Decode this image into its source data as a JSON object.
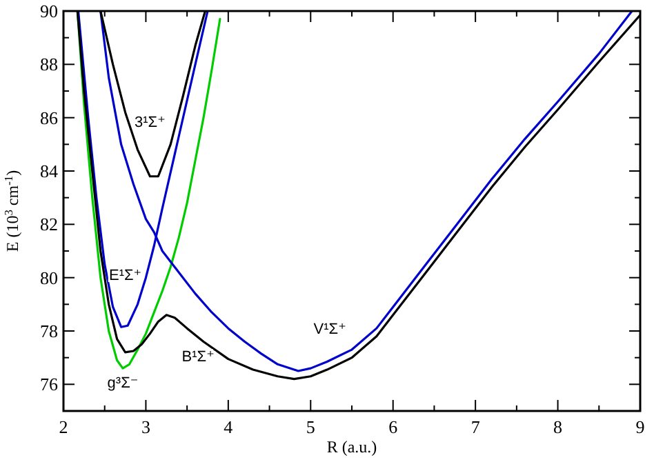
{
  "chart_data": {
    "type": "line",
    "xlabel": "R (a.u.)",
    "ylabel": "E (10$^{3}$ cm$^{-1}$)",
    "xlim": [
      2,
      9
    ],
    "ylim": [
      75,
      90
    ],
    "xticks": [
      2,
      {
        "value": 2.5,
        "label": null
      },
      3,
      {
        "value": 3.5,
        "label": null
      },
      4,
      {
        "value": 4.5,
        "label": null
      },
      5,
      {
        "value": 5.5,
        "label": null
      },
      6,
      {
        "value": 6.5,
        "label": null
      },
      7,
      {
        "value": 7.5,
        "label": null
      },
      8,
      {
        "value": 8.5,
        "label": null
      },
      9
    ],
    "yticks": [
      {
        "value": 75,
        "label": null
      },
      76,
      {
        "value": 77,
        "label": null
      },
      78,
      {
        "value": 79,
        "label": null
      },
      80,
      {
        "value": 81,
        "label": null
      },
      82,
      {
        "value": 83,
        "label": null
      },
      84,
      {
        "value": 85,
        "label": null
      },
      86,
      {
        "value": 87,
        "label": null
      },
      88,
      {
        "value": 89,
        "label": null
      },
      90
    ],
    "grid": false,
    "marker": "none",
    "line_style": "solid",
    "series": [
      {
        "name": "g³Σ⁻",
        "color": "#00cc00",
        "x": [
          2.17,
          2.25,
          2.35,
          2.45,
          2.55,
          2.65,
          2.72,
          2.8,
          2.9,
          3.0,
          3.1,
          3.2,
          3.3,
          3.4,
          3.5,
          3.6,
          3.7,
          3.8,
          3.9
        ],
        "values": [
          90,
          86.5,
          83,
          80,
          78,
          76.9,
          76.6,
          76.75,
          77.3,
          77.9,
          78.7,
          79.5,
          80.4,
          81.5,
          82.8,
          84.4,
          86.0,
          87.8,
          89.7
        ]
      },
      {
        "name": "E¹Σ⁺",
        "color": "#0000cc",
        "x": [
          2.18,
          2.3,
          2.4,
          2.5,
          2.6,
          2.7,
          2.78,
          2.9,
          3.0,
          3.1,
          3.2,
          3.4,
          3.6,
          3.75
        ],
        "values": [
          90,
          86,
          83,
          80.5,
          78.9,
          78.15,
          78.2,
          79,
          80,
          81.2,
          82.6,
          85.3,
          88,
          90
        ]
      },
      {
        "name": "V¹Σ⁺",
        "color": "#0000cc",
        "x": [
          2.45,
          2.55,
          2.7,
          2.85,
          3.0,
          3.1,
          3.2,
          3.4,
          3.6,
          3.8,
          4.0,
          4.2,
          4.4,
          4.6,
          4.85,
          5.0,
          5.2,
          5.5,
          5.8,
          6.0,
          6.4,
          6.8,
          7.2,
          7.6,
          8.0,
          8.5,
          8.9
        ],
        "values": [
          90,
          87.5,
          85,
          83.5,
          82.2,
          81.7,
          81,
          80.2,
          79.4,
          78.7,
          78.1,
          77.6,
          77.15,
          76.75,
          76.5,
          76.6,
          76.85,
          77.3,
          78.1,
          78.9,
          80.5,
          82.1,
          83.7,
          85.2,
          86.6,
          88.4,
          90
        ]
      },
      {
        "name": "B¹Σ⁺",
        "color": "#000000",
        "x": [
          2.17,
          2.25,
          2.35,
          2.45,
          2.55,
          2.65,
          2.75,
          2.85,
          2.95,
          3.05,
          3.15,
          3.25,
          3.35,
          3.5,
          3.7,
          4.0,
          4.3,
          4.6,
          4.8,
          5.0,
          5.2,
          5.5,
          5.8,
          6.0,
          6.4,
          6.8,
          7.2,
          7.6,
          8.0,
          8.5,
          9
        ],
        "values": [
          90,
          87,
          84,
          81,
          79,
          77.7,
          77.2,
          77.25,
          77.5,
          77.9,
          78.35,
          78.6,
          78.5,
          78.1,
          77.6,
          76.95,
          76.55,
          76.3,
          76.2,
          76.3,
          76.55,
          77.0,
          77.8,
          78.6,
          80.2,
          81.8,
          83.4,
          84.9,
          86.3,
          88.1,
          89.85
        ]
      },
      {
        "name": "3¹Σ⁺",
        "color": "#000000",
        "x": [
          2.45,
          2.6,
          2.75,
          2.9,
          3.05,
          3.15,
          3.3,
          3.45,
          3.6,
          3.72
        ],
        "values": [
          90,
          88,
          86.2,
          84.8,
          83.8,
          83.8,
          85,
          86.8,
          88.7,
          90
        ]
      }
    ]
  }
}
